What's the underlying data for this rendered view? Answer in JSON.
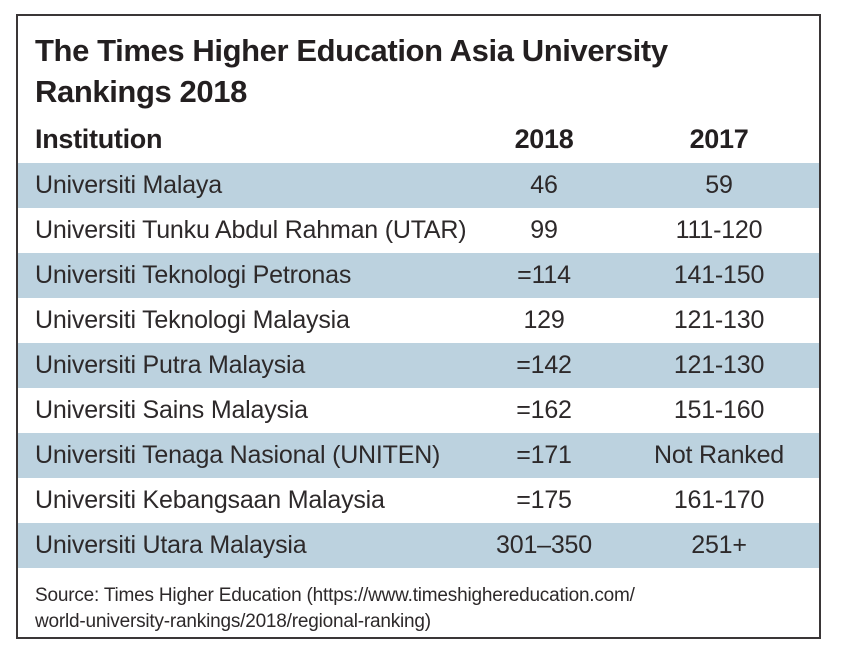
{
  "header": {
    "title_lines": [
      "The Times Higher Education Asia University",
      "Rankings 2018"
    ]
  },
  "table": {
    "columns": [
      "Institution",
      "2018",
      "2017"
    ],
    "rows": [
      {
        "institution": "Universiti Malaya",
        "r2018": "46",
        "r2017": "59"
      },
      {
        "institution": "Universiti Tunku Abdul Rahman (UTAR)",
        "r2018": "99",
        "r2017": "111-120"
      },
      {
        "institution": "Universiti Teknologi Petronas",
        "r2018": "=114",
        "r2017": "141-150"
      },
      {
        "institution": "Universiti Teknologi Malaysia",
        "r2018": "129",
        "r2017": "121-130"
      },
      {
        "institution": "Universiti Putra Malaysia",
        "r2018": "=142",
        "r2017": "121-130"
      },
      {
        "institution": "Universiti Sains Malaysia",
        "r2018": "=162",
        "r2017": "151-160"
      },
      {
        "institution": "Universiti Tenaga Nasional (UNITEN)",
        "r2018": "=171",
        "r2017": "Not Ranked"
      },
      {
        "institution": "Universiti Kebangsaan Malaysia",
        "r2018": "=175",
        "r2017": "161-170"
      },
      {
        "institution": "Universiti Utara Malaysia",
        "r2018": "301–350",
        "r2017": "251+"
      }
    ]
  },
  "source": {
    "lines": [
      "Source: Times Higher Education (https://www.timeshighereducation.com/",
      "world-university-rankings/2018/regional-ranking)"
    ]
  },
  "colors": {
    "row_highlight": "#bcd2df",
    "card_border": "#3a3637",
    "title_text": "#231f20",
    "body_text": "#2d292a"
  }
}
